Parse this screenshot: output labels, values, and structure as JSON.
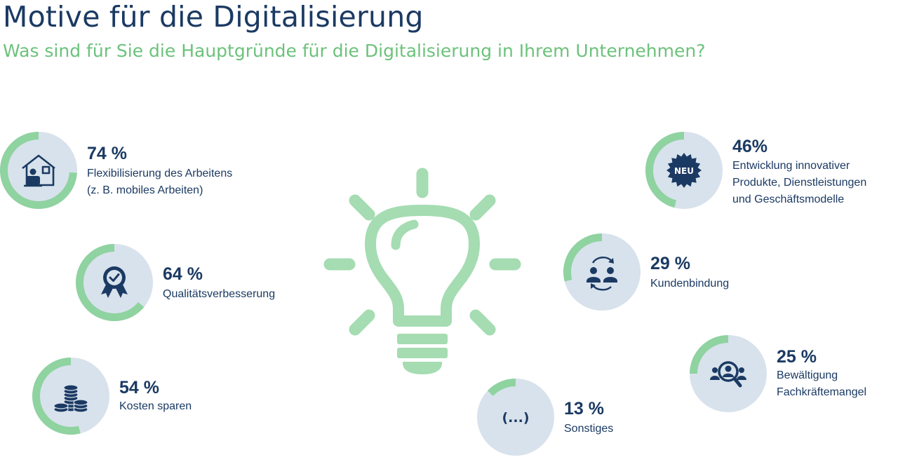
{
  "header": {
    "title": "Motive für die Digitalisierung",
    "subtitle": "Was sind für Sie die Hauptgründe für die Digitalisierung in Ihrem Unternehmen?"
  },
  "colors": {
    "navy": "#1b3a63",
    "green": "#6cc27b",
    "ring_fill": "#8fd3a0",
    "ring_track": "#d8e2ec",
    "bulb": "#a5dcb2"
  },
  "chart_data": {
    "type": "pie",
    "unit": "%",
    "items": [
      {
        "value": 74,
        "pct_label": "74 %",
        "label_lines": [
          "Flexibilisierung des Arbeitens",
          "(z. B. mobiles Arbeiten)"
        ],
        "icon": "home-office-icon"
      },
      {
        "value": 64,
        "pct_label": "64 %",
        "label_lines": [
          "Qualitätsverbesserung"
        ],
        "icon": "quality-award-icon"
      },
      {
        "value": 54,
        "pct_label": "54 %",
        "label_lines": [
          "Kosten sparen"
        ],
        "icon": "coins-icon"
      },
      {
        "value": 46,
        "pct_label": "46%",
        "label_lines": [
          "Entwicklung innovativer",
          "Produkte, Dienstleistungen",
          "und Geschäftsmodelle"
        ],
        "icon": "new-badge-icon",
        "icon_text": "NEU"
      },
      {
        "value": 29,
        "pct_label": "29 %",
        "label_lines": [
          "Kundenbindung"
        ],
        "icon": "customer-loyalty-icon"
      },
      {
        "value": 25,
        "pct_label": "25 %",
        "label_lines": [
          "Bewältigung",
          "Fachkräftemangel"
        ],
        "icon": "talent-search-icon"
      },
      {
        "value": 13,
        "pct_label": "13 %",
        "label_lines": [
          "Sonstiges"
        ],
        "icon": "ellipsis-icon",
        "icon_text": "(...)"
      }
    ]
  }
}
